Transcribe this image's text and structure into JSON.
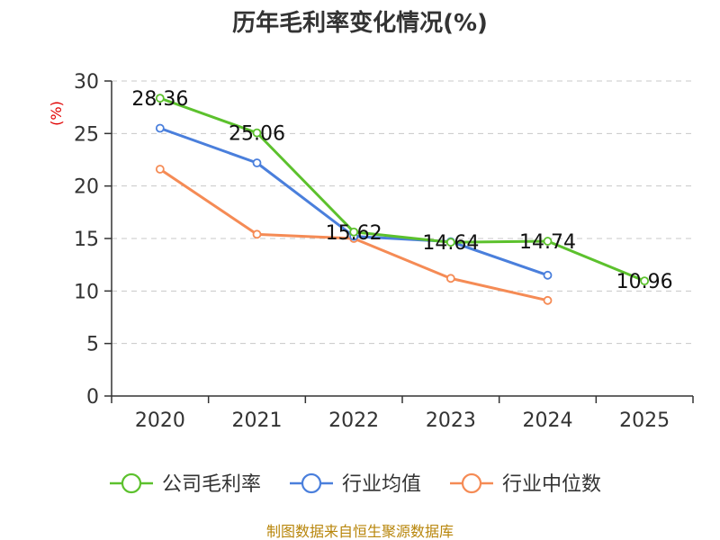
{
  "chart_data": {
    "type": "line",
    "title": "历年毛利率变化情况(%)",
    "ylabel": "(%)",
    "xlabel": "",
    "categories": [
      "2020",
      "2021",
      "2022",
      "2023",
      "2024",
      "2025"
    ],
    "ylim": [
      0,
      30
    ],
    "yticks": [
      0,
      5,
      10,
      15,
      20,
      25,
      30
    ],
    "grid": true,
    "legend_position": "bottom",
    "series": [
      {
        "name": "公司毛利率",
        "color": "#5cc12d",
        "values": [
          28.36,
          25.06,
          15.62,
          14.64,
          14.74,
          10.96
        ],
        "labels": [
          "28.36",
          "25.06",
          "15.62",
          "14.64",
          "14.74",
          "10.96"
        ]
      },
      {
        "name": "行业均值",
        "color": "#4a7fdc",
        "values": [
          25.5,
          22.2,
          15.2,
          14.7,
          11.5,
          null
        ]
      },
      {
        "name": "行业中位数",
        "color": "#f58b55",
        "values": [
          21.6,
          15.4,
          15.0,
          11.2,
          9.1,
          null
        ]
      }
    ],
    "source": "制图数据来自恒生聚源数据库"
  }
}
